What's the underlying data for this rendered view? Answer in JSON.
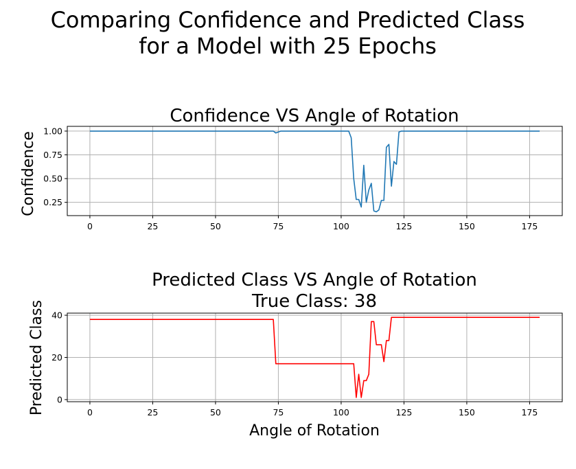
{
  "figure": {
    "suptitle_line1": "Comparing Confidence and Predicted Class",
    "suptitle_line2": "for a Model with 25 Epochs"
  },
  "chart_data": [
    {
      "type": "line",
      "title": "Confidence VS Angle of Rotation",
      "xlabel": "",
      "ylabel": "Confidence",
      "xlim": [
        -9,
        188
      ],
      "ylim": [
        0.11,
        1.05
      ],
      "xticks": [
        0,
        25,
        50,
        75,
        100,
        125,
        150,
        175
      ],
      "yticks": [
        0.25,
        0.5,
        0.75,
        1.0
      ],
      "ytick_labels": [
        "0.25",
        "0.50",
        "0.75",
        "1.00"
      ],
      "grid": true,
      "color": "#1f77b4",
      "series": [
        {
          "x": [
            0,
            10,
            20,
            30,
            40,
            50,
            60,
            70,
            73,
            74,
            75,
            76,
            80,
            90,
            100,
            102,
            103,
            104,
            105,
            106,
            107,
            108,
            109,
            110,
            111,
            112,
            113,
            114,
            115,
            116,
            117,
            118,
            119,
            120,
            121,
            122,
            123,
            124,
            125,
            130,
            140,
            150,
            160,
            170,
            179
          ],
          "y": [
            1.0,
            1.0,
            1.0,
            1.0,
            1.0,
            1.0,
            1.0,
            1.0,
            1.0,
            0.98,
            0.99,
            1.0,
            1.0,
            1.0,
            1.0,
            1.0,
            1.0,
            0.93,
            0.5,
            0.28,
            0.28,
            0.2,
            0.64,
            0.25,
            0.38,
            0.45,
            0.16,
            0.15,
            0.17,
            0.27,
            0.27,
            0.83,
            0.86,
            0.42,
            0.68,
            0.65,
            0.99,
            1.0,
            1.0,
            1.0,
            1.0,
            1.0,
            1.0,
            1.0,
            1.0
          ]
        }
      ]
    },
    {
      "type": "line",
      "title_line1": "Predicted Class VS Angle of Rotation",
      "title_line2": "True Class: 38",
      "xlabel": "Angle of Rotation",
      "ylabel": "Predicted Class",
      "xlim": [
        -9,
        188
      ],
      "ylim": [
        -1,
        41
      ],
      "xticks": [
        0,
        25,
        50,
        75,
        100,
        125,
        150,
        175
      ],
      "yticks": [
        0,
        20,
        40
      ],
      "ytick_labels": [
        "0",
        "20",
        "40"
      ],
      "grid": true,
      "color": "#ff0000",
      "series": [
        {
          "x": [
            0,
            10,
            20,
            30,
            40,
            50,
            60,
            70,
            73,
            74,
            75,
            80,
            90,
            100,
            105,
            106,
            107,
            108,
            109,
            110,
            111,
            112,
            113,
            114,
            115,
            116,
            117,
            118,
            119,
            120,
            121,
            125,
            130,
            140,
            150,
            160,
            170,
            179
          ],
          "y": [
            38,
            38,
            38,
            38,
            38,
            38,
            38,
            38,
            38,
            17,
            17,
            17,
            17,
            17,
            17,
            1,
            12,
            1,
            9,
            9,
            12,
            37,
            37,
            26,
            26,
            26,
            18,
            28,
            28,
            39,
            39,
            39,
            39,
            39,
            39,
            39,
            39,
            39
          ]
        }
      ]
    }
  ]
}
